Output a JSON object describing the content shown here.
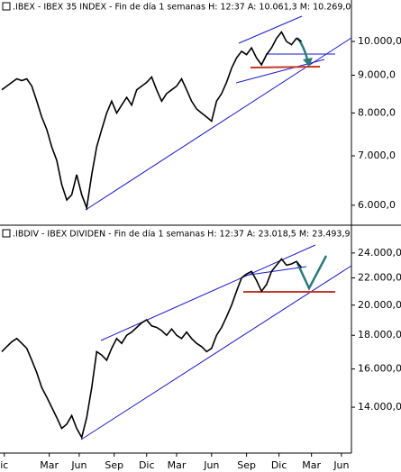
{
  "chart_data": [
    {
      "type": "line",
      "title": ".IBEX - IBEX 35 INDEX - Fin de día 1 semanas  H: 12:37  A: 10.061,3  M: 10.269,0",
      "color": "#000000",
      "log_scale": true,
      "values": [
        8600,
        8700,
        8800,
        8900,
        8850,
        8900,
        8700,
        8300,
        7900,
        7600,
        7200,
        6900,
        6400,
        6100,
        6200,
        6600,
        6200,
        5950,
        6600,
        7200,
        7600,
        8000,
        8300,
        8000,
        8200,
        8400,
        8200,
        8600,
        8700,
        8800,
        8950,
        8600,
        8300,
        8500,
        8600,
        8700,
        8900,
        8600,
        8300,
        8100,
        8000,
        7900,
        7800,
        8300,
        8500,
        8800,
        9200,
        9500,
        9700,
        9600,
        9800,
        9500,
        9300,
        9600,
        9800,
        10100,
        10300,
        10000,
        9900,
        10100,
        10000
      ],
      "xlim": [
        0,
        70
      ],
      "ylim": [
        5670,
        11380
      ],
      "yticks": [
        {
          "value": 10000,
          "label": "10.000,0"
        },
        {
          "value": 9000,
          "label": "9.000,0"
        },
        {
          "value": 8000,
          "label": "8.000,0"
        },
        {
          "value": 7000,
          "label": "7.000,0"
        },
        {
          "value": 6000,
          "label": "6.000,0"
        }
      ]
    },
    {
      "type": "line",
      "title": ".IBDIV - IBEX DIVIDEN - Fin de día 1 semanas  H: 12:37  A: 23.018,5  M: 23.493,9",
      "color": "#000000",
      "log_scale": true,
      "values": [
        17000,
        17300,
        17600,
        17800,
        17500,
        17200,
        16500,
        15800,
        15000,
        14500,
        14000,
        13500,
        13000,
        13200,
        13600,
        13000,
        12600,
        13500,
        15000,
        17000,
        16800,
        16500,
        17200,
        17800,
        17500,
        18000,
        18200,
        18500,
        18800,
        19000,
        18600,
        18500,
        18300,
        18000,
        18400,
        18000,
        17800,
        18200,
        17800,
        17500,
        17300,
        17000,
        17200,
        18000,
        18500,
        19200,
        20000,
        21000,
        22000,
        22300,
        22500,
        21800,
        21000,
        21500,
        22500,
        23000,
        23500,
        23000,
        23100,
        23300,
        22800
      ],
      "xlim": [
        0,
        70
      ],
      "ylim": [
        12040,
        26280
      ],
      "yticks": [
        {
          "value": 24000,
          "label": "24.000,0"
        },
        {
          "value": 22000,
          "label": "22.000,0"
        },
        {
          "value": 20000,
          "label": "20.000,0"
        },
        {
          "value": 18000,
          "label": "18.000,0"
        },
        {
          "value": 16000,
          "label": "16.000,0"
        },
        {
          "value": 14000,
          "label": "14.000,0"
        }
      ],
      "xticks": [
        {
          "value": 0.5,
          "label": "ic"
        },
        {
          "value": 9.5,
          "label": "Mar"
        },
        {
          "value": 15.5,
          "label": "Jun"
        },
        {
          "value": 22.5,
          "label": "Sep"
        },
        {
          "value": 29,
          "label": "Dic"
        },
        {
          "value": 35,
          "label": "Mar"
        },
        {
          "value": 42,
          "label": "Jun"
        },
        {
          "value": 49,
          "label": "Sep"
        },
        {
          "value": 55.5,
          "label": "Dic"
        },
        {
          "value": 62,
          "label": "Mar"
        },
        {
          "value": 68,
          "label": "Jun"
        }
      ]
    }
  ]
}
